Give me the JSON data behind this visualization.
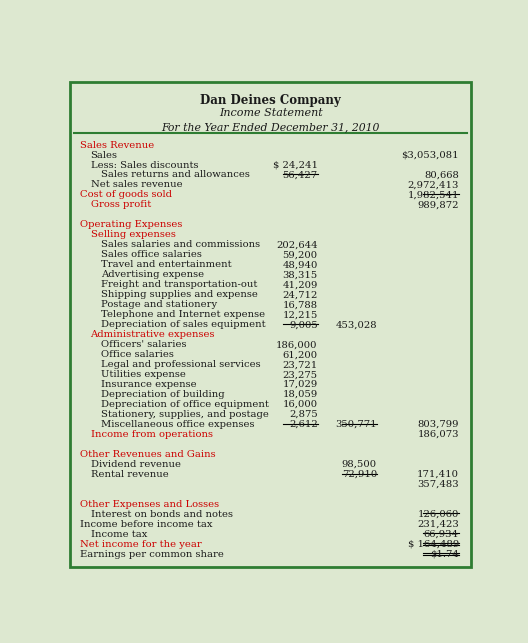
{
  "title1": "Dan Deines Company",
  "title2": "Income Statement",
  "title3": "For the Year Ended December 31, 2010",
  "bg_color": "#dde8d0",
  "border_color": "#2e7d32",
  "header_color": "#1a1a1a",
  "red_color": "#cc0000",
  "black_color": "#1a1a1a",
  "rows": [
    {
      "label": "Sales Revenue",
      "col1": "",
      "col2": "",
      "col3": "",
      "style": "red",
      "indent": 0
    },
    {
      "label": "Sales",
      "col1": "",
      "col2": "",
      "col3": "$3,053,081",
      "style": "normal",
      "indent": 1
    },
    {
      "label": "Less: Sales discounts",
      "col1": "$ 24,241",
      "col2": "",
      "col3": "",
      "style": "normal",
      "indent": 1
    },
    {
      "label": "Sales returns and allowances",
      "col1": "56,427",
      "col2": "",
      "col3": "80,668",
      "style": "normal",
      "indent": 2,
      "underline_col1": true
    },
    {
      "label": "Net sales revenue",
      "col1": "",
      "col2": "",
      "col3": "2,972,413",
      "style": "normal",
      "indent": 1
    },
    {
      "label": "Cost of goods sold",
      "col1": "",
      "col2": "",
      "col3": "1,982,541",
      "style": "red",
      "indent": 0,
      "underline_col3": true
    },
    {
      "label": "Gross profit",
      "col1": "",
      "col2": "",
      "col3": "989,872",
      "style": "red",
      "indent": 1
    },
    {
      "label": "",
      "col1": "",
      "col2": "",
      "col3": "",
      "style": "normal",
      "indent": 0
    },
    {
      "label": "Operating Expenses",
      "col1": "",
      "col2": "",
      "col3": "",
      "style": "red",
      "indent": 0
    },
    {
      "label": "Selling expenses",
      "col1": "",
      "col2": "",
      "col3": "",
      "style": "red",
      "indent": 1
    },
    {
      "label": "Sales salaries and commissions",
      "col1": "202,644",
      "col2": "",
      "col3": "",
      "style": "normal",
      "indent": 2
    },
    {
      "label": "Sales office salaries",
      "col1": "59,200",
      "col2": "",
      "col3": "",
      "style": "normal",
      "indent": 2
    },
    {
      "label": "Travel and entertainment",
      "col1": "48,940",
      "col2": "",
      "col3": "",
      "style": "normal",
      "indent": 2
    },
    {
      "label": "Advertising expense",
      "col1": "38,315",
      "col2": "",
      "col3": "",
      "style": "normal",
      "indent": 2
    },
    {
      "label": "Freight and transportation-out",
      "col1": "41,209",
      "col2": "",
      "col3": "",
      "style": "normal",
      "indent": 2
    },
    {
      "label": "Shipping supplies and expense",
      "col1": "24,712",
      "col2": "",
      "col3": "",
      "style": "normal",
      "indent": 2
    },
    {
      "label": "Postage and stationery",
      "col1": "16,788",
      "col2": "",
      "col3": "",
      "style": "normal",
      "indent": 2
    },
    {
      "label": "Telephone and Internet expense",
      "col1": "12,215",
      "col2": "",
      "col3": "",
      "style": "normal",
      "indent": 2
    },
    {
      "label": "Depreciation of sales equipment",
      "col1": "9,005",
      "col2": "453,028",
      "col3": "",
      "style": "normal",
      "indent": 2,
      "underline_col1": true
    },
    {
      "label": "Administrative expenses",
      "col1": "",
      "col2": "",
      "col3": "",
      "style": "red",
      "indent": 1
    },
    {
      "label": "Officers' salaries",
      "col1": "186,000",
      "col2": "",
      "col3": "",
      "style": "normal",
      "indent": 2
    },
    {
      "label": "Office salaries",
      "col1": "61,200",
      "col2": "",
      "col3": "",
      "style": "normal",
      "indent": 2
    },
    {
      "label": "Legal and professional services",
      "col1": "23,721",
      "col2": "",
      "col3": "",
      "style": "normal",
      "indent": 2
    },
    {
      "label": "Utilities expense",
      "col1": "23,275",
      "col2": "",
      "col3": "",
      "style": "normal",
      "indent": 2
    },
    {
      "label": "Insurance expense",
      "col1": "17,029",
      "col2": "",
      "col3": "",
      "style": "normal",
      "indent": 2
    },
    {
      "label": "Depreciation of building",
      "col1": "18,059",
      "col2": "",
      "col3": "",
      "style": "normal",
      "indent": 2
    },
    {
      "label": "Depreciation of office equipment",
      "col1": "16,000",
      "col2": "",
      "col3": "",
      "style": "normal",
      "indent": 2
    },
    {
      "label": "Stationery, supplies, and postage",
      "col1": "2,875",
      "col2": "",
      "col3": "",
      "style": "normal",
      "indent": 2
    },
    {
      "label": "Miscellaneous office expenses",
      "col1": "2,612",
      "col2": "350,771",
      "col3": "803,799",
      "style": "normal",
      "indent": 2,
      "underline_col1": true,
      "underline_col2": true
    },
    {
      "label": "Income from operations",
      "col1": "",
      "col2": "",
      "col3": "186,073",
      "style": "red",
      "indent": 1
    },
    {
      "label": "",
      "col1": "",
      "col2": "",
      "col3": "",
      "style": "normal",
      "indent": 0
    },
    {
      "label": "Other Revenues and Gains",
      "col1": "",
      "col2": "",
      "col3": "",
      "style": "red",
      "indent": 0
    },
    {
      "label": "Dividend revenue",
      "col1": "",
      "col2": "98,500",
      "col3": "",
      "style": "normal",
      "indent": 1
    },
    {
      "label": "Rental revenue",
      "col1": "",
      "col2": "72,910",
      "col3": "171,410",
      "style": "normal",
      "indent": 1,
      "underline_col2": true
    },
    {
      "label": "",
      "col1": "",
      "col2": "",
      "col3": "357,483",
      "style": "normal",
      "indent": 0
    },
    {
      "label": "",
      "col1": "",
      "col2": "",
      "col3": "",
      "style": "normal",
      "indent": 0
    },
    {
      "label": "Other Expenses and Losses",
      "col1": "",
      "col2": "",
      "col3": "",
      "style": "red",
      "indent": 0
    },
    {
      "label": "Interest on bonds and notes",
      "col1": "",
      "col2": "",
      "col3": "126,060",
      "style": "normal",
      "indent": 1,
      "underline_col3": true
    },
    {
      "label": "Income before income tax",
      "col1": "",
      "col2": "",
      "col3": "231,423",
      "style": "normal",
      "indent": 0
    },
    {
      "label": "Income tax",
      "col1": "",
      "col2": "",
      "col3": "66,934",
      "style": "normal",
      "indent": 1,
      "underline_col3": true
    },
    {
      "label": "Net income for the year",
      "col1": "",
      "col2": "",
      "col3": "$ 164,489",
      "style": "red",
      "indent": 0,
      "double_underline_col3": true
    },
    {
      "label": "Earnings per common share",
      "col1": "",
      "col2": "",
      "col3": "$1.74",
      "style": "normal",
      "indent": 0,
      "double_underline_col3": true
    }
  ]
}
